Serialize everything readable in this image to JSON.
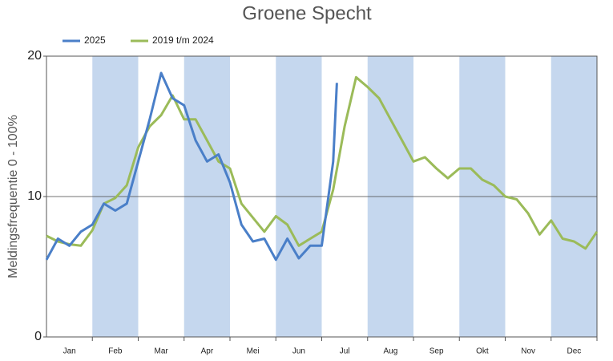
{
  "chart_data": {
    "type": "line",
    "title": "Groene Specht",
    "ylabel": "Meldingsfrequentie 0 - 100%",
    "xlim": [
      0,
      12
    ],
    "ylim": [
      0,
      20
    ],
    "yticks": [
      0,
      10,
      20
    ],
    "grid": true,
    "band_color": "#c5d7ee",
    "xticks": [
      {
        "value": 0.5,
        "label": "Jan"
      },
      {
        "value": 1.5,
        "label": "Feb"
      },
      {
        "value": 2.5,
        "label": "Mar"
      },
      {
        "value": 3.5,
        "label": "Apr"
      },
      {
        "value": 4.5,
        "label": "Mei"
      },
      {
        "value": 5.5,
        "label": "Jun"
      },
      {
        "value": 6.5,
        "label": "Jul"
      },
      {
        "value": 7.5,
        "label": "Aug"
      },
      {
        "value": 8.5,
        "label": "Sep"
      },
      {
        "value": 9.5,
        "label": "Okt"
      },
      {
        "value": 10.5,
        "label": "Nov"
      },
      {
        "value": 11.5,
        "label": "Dec"
      }
    ],
    "legend": "top-left",
    "series": [
      {
        "name": "2025",
        "color": "#4a7fc8",
        "x": [
          0,
          0.25,
          0.5,
          0.75,
          1,
          1.25,
          1.5,
          1.75,
          2,
          2.25,
          2.5,
          2.75,
          3,
          3.25,
          3.5,
          3.75,
          4,
          4.25,
          4.5,
          4.75,
          5,
          5.25,
          5.5,
          5.75,
          6,
          6.25,
          6.33
        ],
        "values": [
          5.5,
          7.0,
          6.5,
          7.5,
          8.0,
          9.5,
          9.0,
          9.5,
          12.5,
          15.5,
          18.8,
          17.0,
          16.5,
          14.0,
          12.5,
          13.0,
          11.0,
          8.0,
          6.8,
          7.0,
          5.5,
          7.0,
          5.6,
          6.5,
          6.5,
          12.5,
          18.1
        ]
      },
      {
        "name": "2019 t/m 2024",
        "color": "#9bbb59",
        "x": [
          0,
          0.25,
          0.5,
          0.75,
          1,
          1.25,
          1.5,
          1.75,
          2,
          2.25,
          2.5,
          2.75,
          3,
          3.25,
          3.5,
          3.75,
          4,
          4.25,
          4.5,
          4.75,
          5,
          5.25,
          5.5,
          5.75,
          6,
          6.25,
          6.5,
          6.75,
          7,
          7.25,
          7.5,
          7.75,
          8,
          8.25,
          8.5,
          8.75,
          9,
          9.25,
          9.5,
          9.75,
          10,
          10.25,
          10.5,
          10.75,
          11,
          11.25,
          11.5,
          11.75,
          12
        ],
        "values": [
          7.2,
          6.8,
          6.6,
          6.5,
          7.6,
          9.5,
          9.9,
          10.8,
          13.5,
          15.0,
          15.8,
          17.2,
          15.5,
          15.5,
          14.0,
          12.5,
          12.0,
          9.5,
          8.5,
          7.5,
          8.6,
          8.0,
          6.5,
          7.0,
          7.5,
          10.5,
          15.0,
          18.5,
          17.8,
          17.0,
          15.5,
          14.0,
          12.5,
          12.8,
          12.0,
          11.3,
          12.0,
          12.0,
          11.2,
          10.8,
          10.0,
          9.8,
          8.8,
          7.3,
          8.3,
          7.0,
          6.8,
          6.3,
          7.5
        ]
      }
    ]
  }
}
